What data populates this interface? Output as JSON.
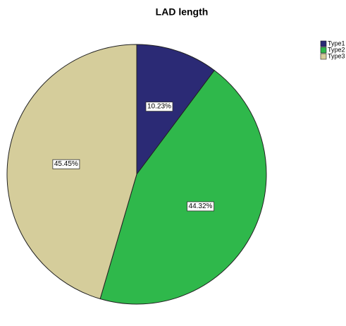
{
  "chart_data": {
    "type": "pie",
    "title": "LAD length",
    "categories": [
      "Type1",
      "Type2",
      "Type3"
    ],
    "values": [
      10.23,
      44.32,
      45.45
    ],
    "value_labels": [
      "10.23%",
      "44.32%",
      "45.45%"
    ],
    "colors": [
      "#2b2a75",
      "#2fb84b",
      "#d5cd9b"
    ],
    "legend": "top-right"
  }
}
